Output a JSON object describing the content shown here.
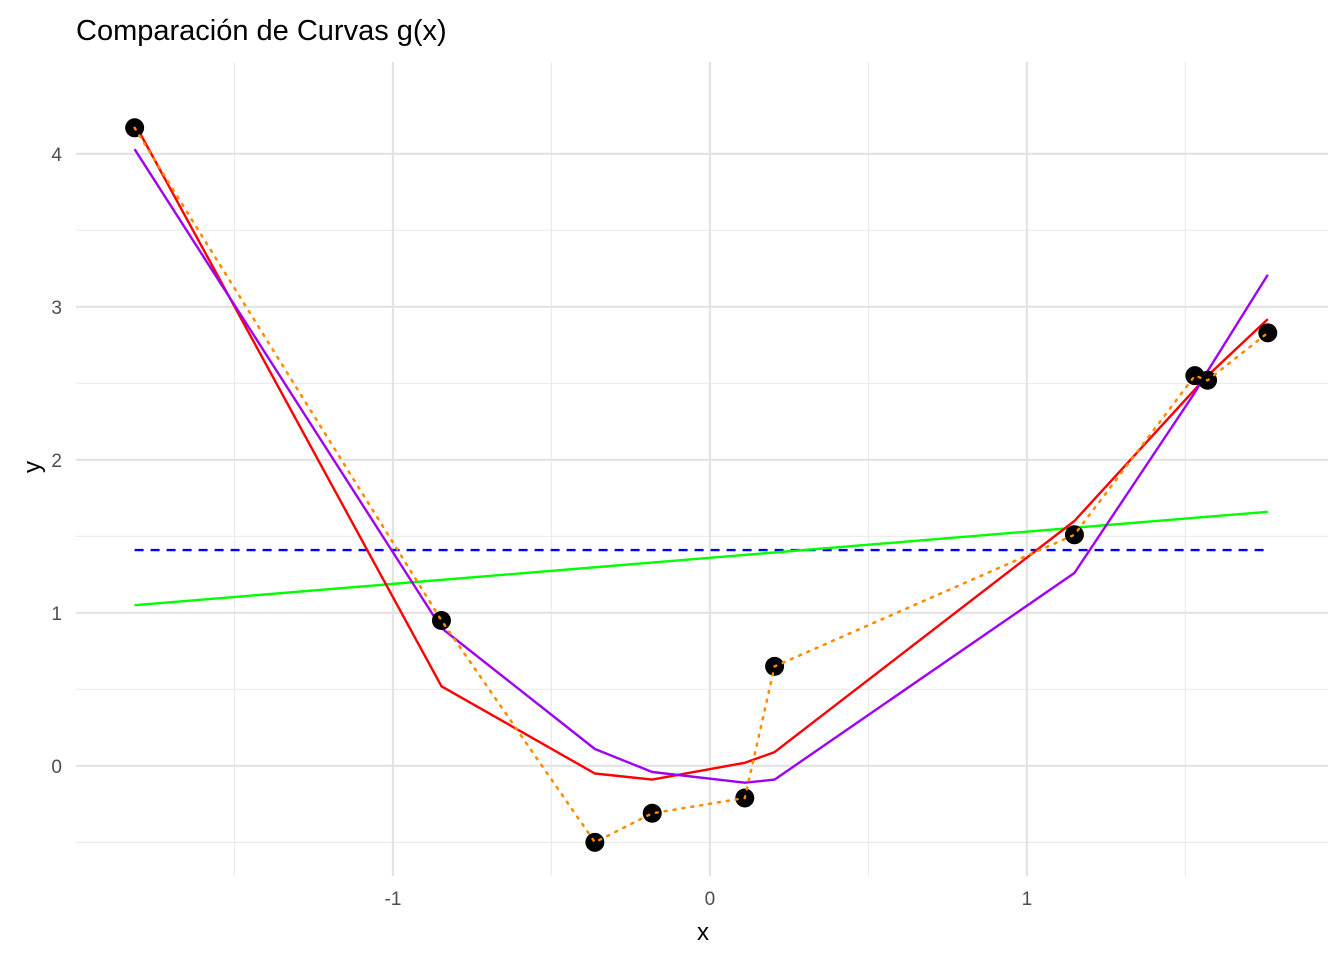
{
  "chart_data": {
    "type": "line",
    "title": "Comparación de Curvas g(x)",
    "xlabel": "x",
    "ylabel": "y",
    "xlim": [
      -2.0,
      1.95
    ],
    "ylim": [
      -0.72,
      4.6
    ],
    "x_ticks": [
      -1,
      0,
      1
    ],
    "x_tick_labels": [
      "-1",
      "0",
      "1"
    ],
    "y_ticks": [
      0,
      1,
      2,
      3,
      4
    ],
    "y_tick_labels": [
      "0",
      "1",
      "2",
      "3",
      "4"
    ],
    "x_minor_grid": [
      -1.5,
      -0.5,
      0.5,
      1.5
    ],
    "y_minor_grid": [
      -0.5,
      0.5,
      1.5,
      2.5,
      3.5
    ],
    "grid": true,
    "legend": "none",
    "points": {
      "x": [
        -1.815,
        -0.847,
        -0.363,
        -0.182,
        0.11,
        0.204,
        1.15,
        1.53,
        1.57,
        1.76
      ],
      "y": [
        4.17,
        0.95,
        -0.5,
        -0.31,
        -0.21,
        0.65,
        1.51,
        2.55,
        2.52,
        2.83
      ],
      "color": "#000000"
    },
    "series": [
      {
        "style": "dotted",
        "color": "#FF8C00",
        "x": [
          -1.815,
          -0.847,
          -0.363,
          -0.182,
          0.11,
          0.204,
          1.15,
          1.53,
          1.57,
          1.76
        ],
        "y": [
          4.17,
          0.95,
          -0.5,
          -0.31,
          -0.21,
          0.65,
          1.51,
          2.55,
          2.52,
          2.83
        ]
      },
      {
        "style": "dashed",
        "color": "#0000FF",
        "x": [
          -1.815,
          1.76
        ],
        "y": [
          1.41,
          1.41
        ]
      },
      {
        "style": "solid",
        "color": "#00FF00",
        "x": [
          -1.815,
          1.76
        ],
        "y": [
          1.05,
          1.66
        ]
      },
      {
        "style": "solid",
        "color": "#FF0000",
        "x": [
          -1.815,
          -0.847,
          -0.363,
          -0.182,
          0.11,
          0.204,
          1.15,
          1.53,
          1.57,
          1.76
        ],
        "y": [
          4.2,
          0.52,
          -0.05,
          -0.09,
          0.02,
          0.09,
          1.6,
          2.46,
          2.55,
          2.92
        ]
      },
      {
        "style": "solid",
        "color": "#A000F0",
        "x": [
          -1.815,
          -0.847,
          -0.363,
          -0.182,
          0.11,
          0.204,
          1.15,
          1.53,
          1.57,
          1.76
        ],
        "y": [
          4.03,
          0.9,
          0.11,
          -0.04,
          -0.11,
          -0.09,
          1.26,
          2.44,
          2.58,
          3.21
        ]
      }
    ]
  }
}
